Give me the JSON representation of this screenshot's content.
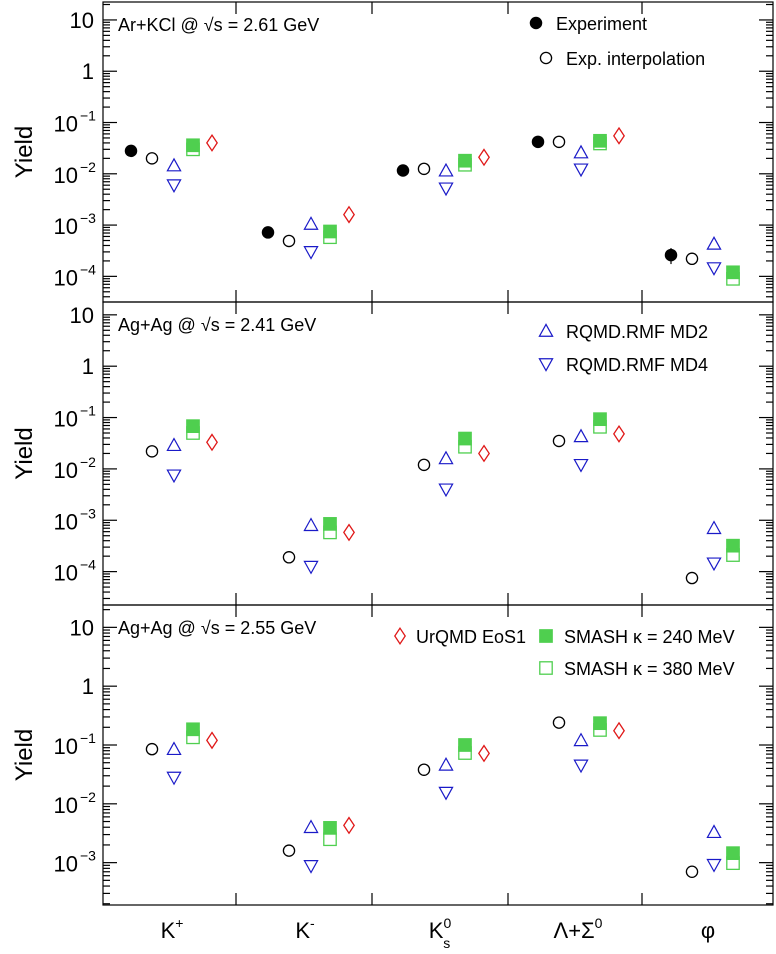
{
  "chart_data": {
    "type": "scatter",
    "y_scale": "log",
    "categories": [
      "K",
      "K",
      "K",
      "Λ+Σ",
      "φ"
    ],
    "category_labels": [
      {
        "main": "K",
        "sup": "+",
        "sub": ""
      },
      {
        "main": "K",
        "sup": "-",
        "sub": ""
      },
      {
        "main": "K",
        "sup": "0",
        "sub": "s"
      },
      {
        "main": "Λ+Σ",
        "sup": "0",
        "sub": ""
      },
      {
        "main": "φ",
        "sup": "",
        "sub": ""
      }
    ],
    "ylabel": "Yield",
    "legend": {
      "experiment": "Experiment",
      "exp_interp": "Exp. interpolation",
      "rqmd_md2": "RQMD.RMF MD2",
      "rqmd_md4": "RQMD.RMF MD4",
      "urqmd": "UrQMD EoS1",
      "smash240": "SMASH κ = 240 MeV",
      "smash380": "SMASH κ = 380 MeV"
    },
    "colors": {
      "experiment": "#000000",
      "exp_interp": "#000000",
      "rqmd": "#1a1ac8",
      "urqmd": "#e01818",
      "smash": "#4fcf4f"
    },
    "panels": [
      {
        "title_prefix": "Ar+KCl @ ",
        "sqrt_s": "√s",
        "title_suffix": " = 2.61 GeV",
        "ylim_exp": [
          -4.5,
          1.35
        ],
        "ticks": [
          {
            "exp": 1,
            "label": "10",
            "sup": ""
          },
          {
            "exp": 0,
            "label": "1",
            "sup": ""
          },
          {
            "exp": -1,
            "label": "10",
            "sup": "−1"
          },
          {
            "exp": -2,
            "label": "10",
            "sup": "−2"
          },
          {
            "exp": -3,
            "label": "10",
            "sup": "−3"
          },
          {
            "exp": -4,
            "label": "10",
            "sup": "−4"
          }
        ],
        "series": {
          "experiment": [
            0.028,
            0.00072,
            0.0116,
            0.042,
            0.00026
          ],
          "exp_interp": [
            0.02,
            0.00049,
            0.0125,
            0.042,
            0.00022
          ],
          "rqmd_md2": [
            0.0145,
            0.00105,
            0.0115,
            0.026,
            0.00043
          ],
          "rqmd_md4": [
            0.006,
            0.0003,
            0.0052,
            0.0122,
            0.000145
          ],
          "smash240": [
            0.036,
            0.00075,
            0.018,
            0.044,
            0.00012
          ],
          "smash380": [
            0.03,
            0.00058,
            0.015,
            0.039,
            8.95e-05
          ],
          "urqmd": [
            0.04,
            0.0016,
            0.021,
            0.055,
            null
          ]
        }
      },
      {
        "title_prefix": "Ag+Ag @ ",
        "sqrt_s": "√s",
        "title_suffix": " = 2.41 GeV",
        "ylim_exp": [
          -4.65,
          1.25
        ],
        "ticks": [
          {
            "exp": 1,
            "label": "10",
            "sup": ""
          },
          {
            "exp": 0,
            "label": "1",
            "sup": ""
          },
          {
            "exp": -1,
            "label": "10",
            "sup": "−1"
          },
          {
            "exp": -2,
            "label": "10",
            "sup": "−2"
          },
          {
            "exp": -3,
            "label": "10",
            "sup": "−3"
          },
          {
            "exp": -4,
            "label": "10",
            "sup": "−4"
          }
        ],
        "series": {
          "experiment": [
            null,
            null,
            null,
            null,
            null
          ],
          "exp_interp": [
            0.022,
            0.00019,
            0.012,
            0.035,
            7.5e-05
          ],
          "rqmd_md2": [
            0.029,
            0.0008,
            0.016,
            0.043,
            0.0007
          ],
          "rqmd_md4": [
            0.0075,
            0.000125,
            0.004,
            0.012,
            0.000145
          ],
          "smash240": [
            0.068,
            0.00085,
            0.039,
            0.093,
            0.00032
          ],
          "smash380": [
            0.05,
            0.00058,
            0.027,
            0.066,
            0.00021
          ],
          "urqmd": [
            0.033,
            0.00058,
            0.02,
            0.048,
            null
          ]
        }
      },
      {
        "title_prefix": "Ag+Ag @ ",
        "sqrt_s": "√s",
        "title_suffix": " = 2.55 GeV",
        "ylim_exp": [
          -3.72,
          1.38
        ],
        "ticks": [
          {
            "exp": 1,
            "label": "10",
            "sup": ""
          },
          {
            "exp": 0,
            "label": "1",
            "sup": ""
          },
          {
            "exp": -1,
            "label": "10",
            "sup": "−1"
          },
          {
            "exp": -2,
            "label": "10",
            "sup": "−2"
          },
          {
            "exp": -3,
            "label": "10",
            "sup": "−3"
          }
        ],
        "series": {
          "experiment": [
            null,
            null,
            null,
            null,
            null
          ],
          "exp_interp": [
            0.085,
            0.0016,
            0.038,
            0.24,
            0.0007
          ],
          "rqmd_md2": [
            0.085,
            0.004,
            0.046,
            0.12,
            0.0033
          ],
          "rqmd_md4": [
            0.028,
            0.00088,
            0.0155,
            0.045,
            0.00092
          ],
          "smash240": [
            0.185,
            0.0039,
            0.1,
            0.235,
            0.00145
          ],
          "smash380": [
            0.135,
            0.0025,
            0.073,
            0.18,
            0.00098
          ],
          "urqmd": [
            0.12,
            0.0043,
            0.072,
            0.175,
            null
          ]
        }
      }
    ]
  }
}
